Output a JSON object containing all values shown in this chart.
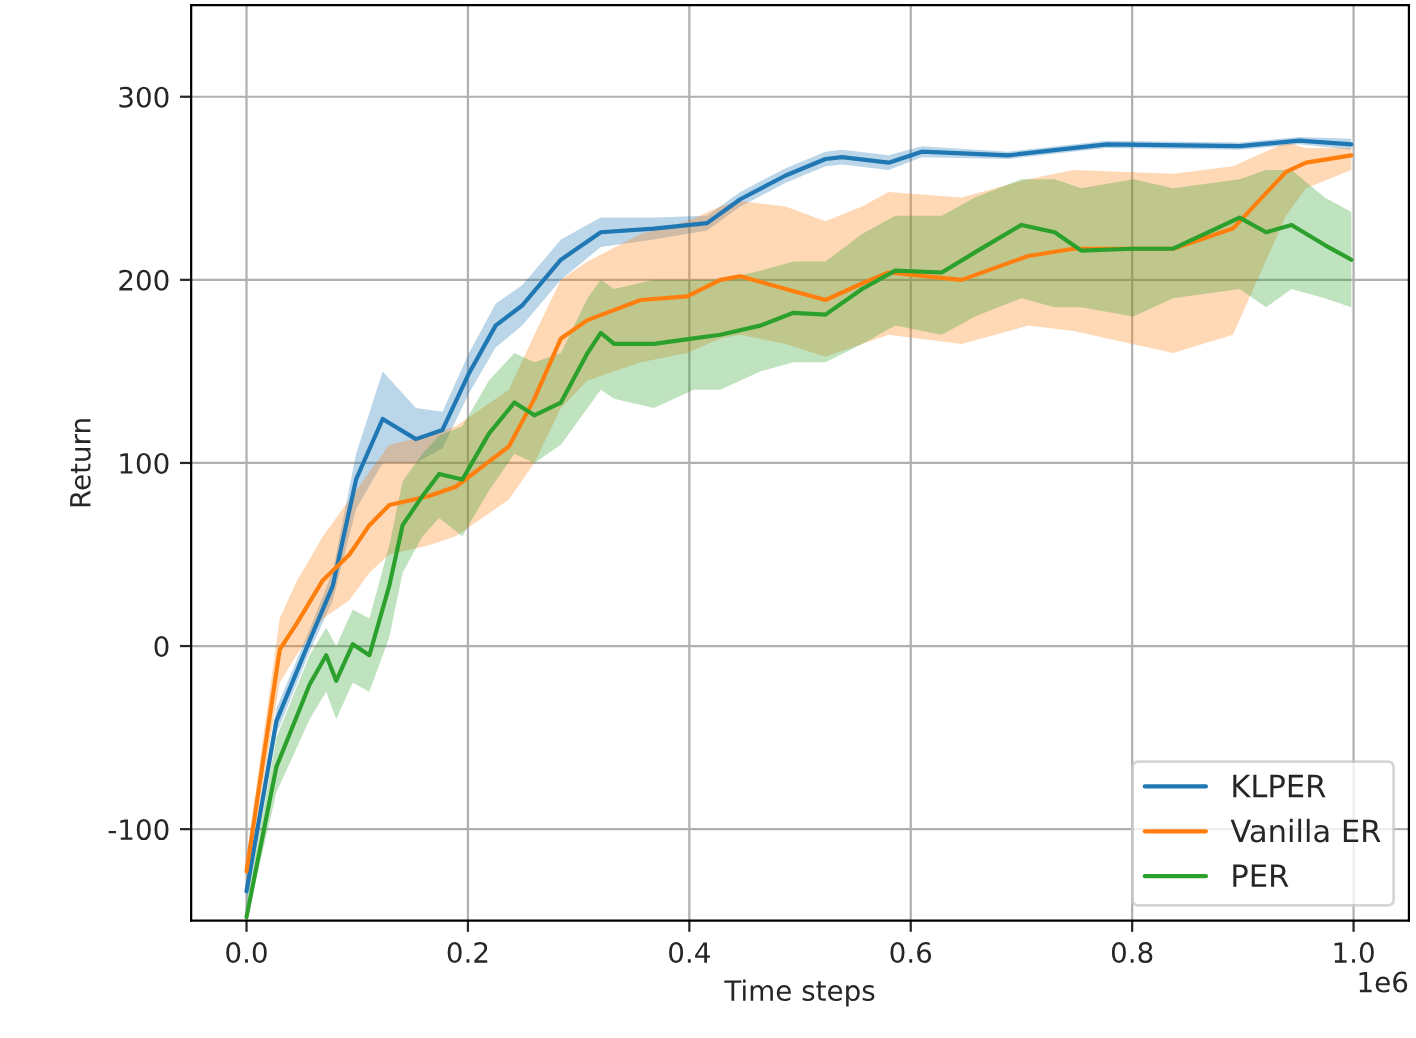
{
  "chart_data": {
    "type": "line",
    "xlabel": "Time steps",
    "ylabel": "Return",
    "xlim": [
      -0.05,
      1.05
    ],
    "ylim": [
      -150,
      350
    ],
    "xticks": [
      {
        "value": 0,
        "label": "0.0"
      },
      {
        "value": 0.2,
        "label": "0.2"
      },
      {
        "value": 0.4,
        "label": "0.4"
      },
      {
        "value": 0.6,
        "label": "0.6"
      },
      {
        "value": 0.8,
        "label": "0.8"
      },
      {
        "value": 1.0,
        "label": "1.0"
      }
    ],
    "yticks": [
      -100,
      0,
      100,
      200,
      300
    ],
    "annotations": [
      "1e6"
    ],
    "grid": true,
    "legend": "bottom right",
    "line_style": "solid",
    "marker": "none",
    "series": [
      {
        "name": "KLPER",
        "color": "#1f77b4",
        "x": [
          0,
          0.027,
          0.057,
          0.078,
          0.099,
          0.123,
          0.153,
          0.177,
          0.201,
          0.225,
          0.249,
          0.284,
          0.32,
          0.368,
          0.416,
          0.446,
          0.487,
          0.523,
          0.538,
          0.58,
          0.61,
          0.688,
          0.777,
          0.897,
          0.951,
          0.998
        ],
        "values": [
          -134,
          -41,
          3,
          33,
          91,
          124,
          113,
          118,
          149,
          175,
          186,
          211,
          226,
          228,
          231,
          244,
          257,
          266,
          267,
          264,
          270,
          268,
          274,
          273,
          276,
          274
        ],
        "lower": [
          -140,
          -48,
          -3,
          25,
          75,
          100,
          100,
          108,
          138,
          163,
          175,
          200,
          218,
          222,
          227,
          240,
          253,
          262,
          263,
          260,
          267,
          266,
          272,
          271,
          274,
          271
        ],
        "upper": [
          -128,
          -34,
          9,
          41,
          105,
          150,
          130,
          128,
          160,
          187,
          197,
          222,
          234,
          234,
          235,
          248,
          261,
          270,
          271,
          268,
          273,
          270,
          276,
          275,
          278,
          277
        ]
      },
      {
        "name": "Vanilla ER",
        "color": "#ff7f0e",
        "x": [
          0,
          0.03,
          0.045,
          0.069,
          0.093,
          0.111,
          0.129,
          0.165,
          0.189,
          0.213,
          0.237,
          0.26,
          0.284,
          0.308,
          0.356,
          0.398,
          0.428,
          0.446,
          0.487,
          0.523,
          0.556,
          0.58,
          0.646,
          0.706,
          0.747,
          0.837,
          0.891,
          0.939,
          0.957,
          0.998
        ],
        "values": [
          -123,
          -2,
          12,
          36,
          50,
          66,
          77,
          82,
          87,
          98,
          109,
          135,
          168,
          178,
          189,
          191,
          200,
          202,
          195,
          189,
          198,
          204,
          200,
          213,
          217,
          217,
          228,
          259,
          264,
          268
        ],
        "lower": [
          -130,
          -20,
          -5,
          15,
          25,
          40,
          50,
          55,
          60,
          70,
          80,
          100,
          130,
          145,
          155,
          160,
          168,
          170,
          165,
          158,
          165,
          170,
          165,
          175,
          172,
          160,
          170,
          235,
          250,
          260
        ],
        "upper": [
          -115,
          15,
          35,
          60,
          80,
          95,
          110,
          115,
          120,
          130,
          140,
          170,
          200,
          210,
          225,
          232,
          240,
          243,
          240,
          232,
          240,
          248,
          245,
          255,
          260,
          258,
          262,
          275,
          272,
          272
        ]
      },
      {
        "name": "PER",
        "color": "#2ca02c",
        "x": [
          0,
          0.027,
          0.057,
          0.072,
          0.081,
          0.096,
          0.111,
          0.129,
          0.141,
          0.159,
          0.174,
          0.195,
          0.219,
          0.242,
          0.26,
          0.284,
          0.308,
          0.32,
          0.332,
          0.368,
          0.404,
          0.428,
          0.464,
          0.494,
          0.523,
          0.556,
          0.586,
          0.628,
          0.658,
          0.7,
          0.73,
          0.754,
          0.801,
          0.837,
          0.897,
          0.921,
          0.944,
          0.974,
          0.998
        ],
        "values": [
          -148,
          -66,
          -21,
          -5,
          -19,
          1,
          -5,
          33,
          66,
          82,
          94,
          91,
          116,
          133,
          126,
          133,
          160,
          171,
          165,
          165,
          168,
          170,
          175,
          182,
          181,
          195,
          205,
          204,
          215,
          230,
          226,
          216,
          217,
          217,
          234,
          226,
          230,
          219,
          211
        ],
        "lower": [
          -150,
          -80,
          -40,
          -25,
          -40,
          -20,
          -25,
          5,
          40,
          60,
          70,
          60,
          85,
          105,
          100,
          110,
          130,
          140,
          135,
          130,
          140,
          140,
          150,
          155,
          155,
          165,
          175,
          170,
          180,
          190,
          185,
          185,
          180,
          190,
          195,
          185,
          195,
          190,
          185
        ],
        "upper": [
          -140,
          -50,
          -5,
          10,
          0,
          20,
          15,
          55,
          90,
          105,
          115,
          120,
          145,
          160,
          155,
          160,
          190,
          200,
          195,
          200,
          200,
          200,
          205,
          210,
          210,
          225,
          235,
          235,
          245,
          255,
          255,
          250,
          255,
          250,
          255,
          260,
          260,
          245,
          237
        ]
      }
    ]
  }
}
